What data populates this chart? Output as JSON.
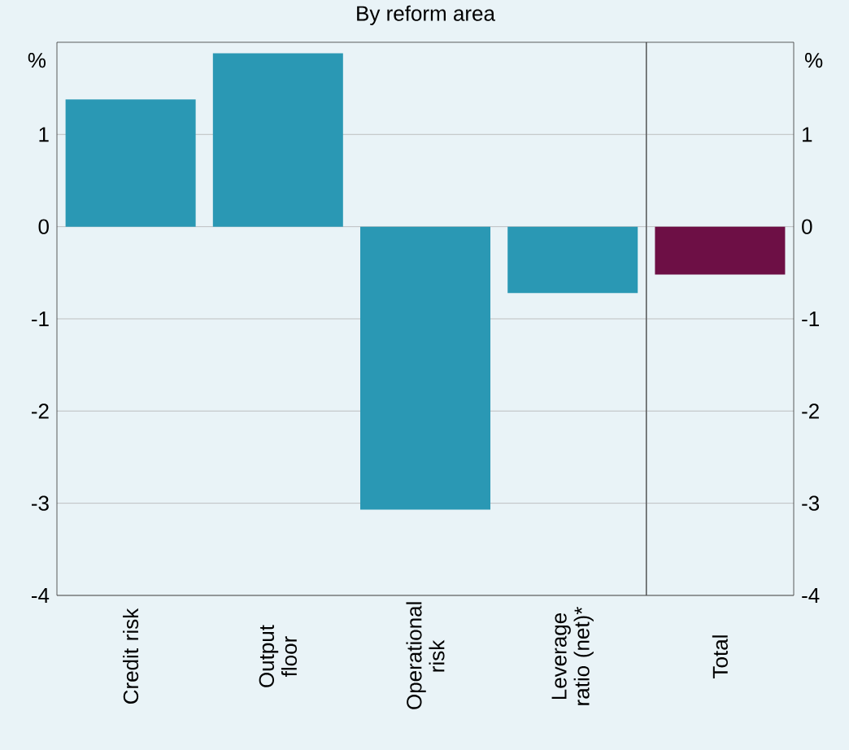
{
  "chart_data": {
    "type": "bar",
    "title": "By reform area",
    "ylabel": "%",
    "y2label": "%",
    "categories": [
      "Credit risk",
      "Output floor",
      "Operational risk",
      "Leverage ratio (net)*",
      "Total"
    ],
    "values": [
      1.38,
      1.88,
      -3.07,
      -0.72,
      -0.52
    ],
    "colors": [
      "#2a98b4",
      "#2a98b4",
      "#2a98b4",
      "#2a98b4",
      "#6d0f45"
    ],
    "ylim": [
      -4,
      2
    ],
    "yticks": [
      -4,
      -3,
      -2,
      -1,
      0,
      1
    ],
    "y2lim": [
      -4,
      2
    ],
    "y2ticks": [
      -4,
      -3,
      -2,
      -1,
      0,
      1
    ],
    "grid": "y"
  }
}
